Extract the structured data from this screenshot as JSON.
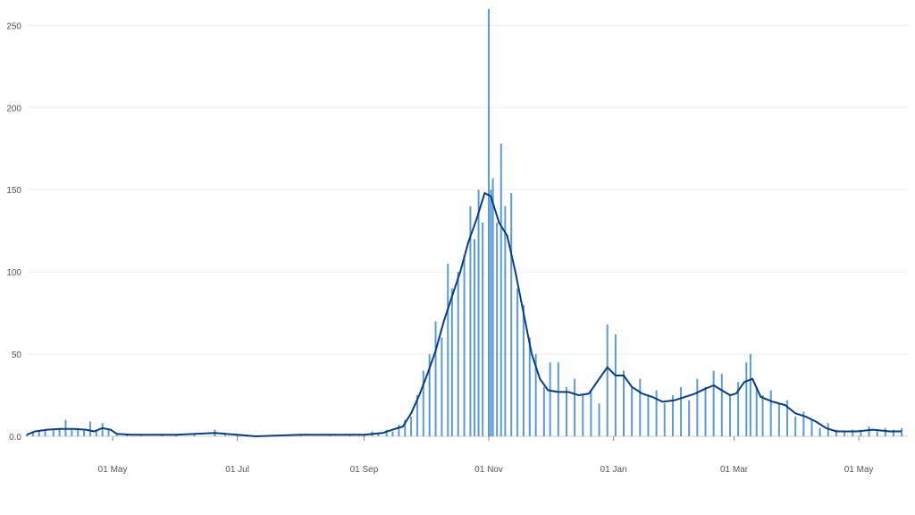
{
  "chart_data": {
    "type": "bar",
    "title": "",
    "xlabel": "",
    "ylabel": "",
    "x_start": "2020-03-20",
    "x_end": "2021-05-25",
    "ylim": [
      0,
      260
    ],
    "grid": "horizontal",
    "colors": {
      "bars": "#5b9bd5",
      "line": "#0b3d7e",
      "grid": "#eeeeee",
      "text": "#555555"
    },
    "y_ticks": [
      {
        "value": 0,
        "label": "0.0"
      },
      {
        "value": 50,
        "label": "50"
      },
      {
        "value": 100,
        "label": "100"
      },
      {
        "value": 150,
        "label": "150"
      },
      {
        "value": 200,
        "label": "200"
      },
      {
        "value": 250,
        "label": "250"
      }
    ],
    "x_ticks": [
      {
        "date": "2020-05-01",
        "label": "01 May"
      },
      {
        "date": "2020-07-01",
        "label": "01 Jul"
      },
      {
        "date": "2020-09-01",
        "label": "01 Sep"
      },
      {
        "date": "2020-11-01",
        "label": "01 Nov"
      },
      {
        "date": "2021-01-01",
        "label": "01 Jan"
      },
      {
        "date": "2021-03-01",
        "label": "01 Mar"
      },
      {
        "date": "2021-05-01",
        "label": "01 May"
      }
    ],
    "series": [
      {
        "kind": "bar",
        "points": [
          [
            "2020-03-20",
            1
          ],
          [
            "2020-03-23",
            2
          ],
          [
            "2020-03-26",
            3
          ],
          [
            "2020-03-29",
            4
          ],
          [
            "2020-04-02",
            4
          ],
          [
            "2020-04-05",
            5
          ],
          [
            "2020-04-08",
            10
          ],
          [
            "2020-04-11",
            4
          ],
          [
            "2020-04-14",
            5
          ],
          [
            "2020-04-17",
            4
          ],
          [
            "2020-04-20",
            9
          ],
          [
            "2020-04-23",
            4
          ],
          [
            "2020-04-26",
            8
          ],
          [
            "2020-04-29",
            4
          ],
          [
            "2020-05-03",
            2
          ],
          [
            "2020-05-08",
            1
          ],
          [
            "2020-05-15",
            1
          ],
          [
            "2020-05-25",
            1
          ],
          [
            "2020-06-01",
            1
          ],
          [
            "2020-06-10",
            1
          ],
          [
            "2020-06-20",
            4
          ],
          [
            "2020-06-25",
            1
          ],
          [
            "2020-07-01",
            1
          ],
          [
            "2020-07-15",
            0
          ],
          [
            "2020-08-01",
            1
          ],
          [
            "2020-08-15",
            1
          ],
          [
            "2020-08-25",
            1
          ],
          [
            "2020-09-01",
            1
          ],
          [
            "2020-09-05",
            3
          ],
          [
            "2020-09-08",
            2
          ],
          [
            "2020-09-12",
            4
          ],
          [
            "2020-09-15",
            3
          ],
          [
            "2020-09-18",
            7
          ],
          [
            "2020-09-21",
            10
          ],
          [
            "2020-09-24",
            12
          ],
          [
            "2020-09-27",
            25
          ],
          [
            "2020-09-30",
            40
          ],
          [
            "2020-10-03",
            50
          ],
          [
            "2020-10-06",
            70
          ],
          [
            "2020-10-09",
            60
          ],
          [
            "2020-10-12",
            105
          ],
          [
            "2020-10-14",
            90
          ],
          [
            "2020-10-17",
            100
          ],
          [
            "2020-10-20",
            110
          ],
          [
            "2020-10-23",
            140
          ],
          [
            "2020-10-25",
            120
          ],
          [
            "2020-10-27",
            150
          ],
          [
            "2020-10-29",
            130
          ],
          [
            "2020-11-01",
            260
          ],
          [
            "2020-11-02",
            150
          ],
          [
            "2020-11-03",
            157
          ],
          [
            "2020-11-05",
            130
          ],
          [
            "2020-11-07",
            178
          ],
          [
            "2020-11-09",
            140
          ],
          [
            "2020-11-12",
            148
          ],
          [
            "2020-11-15",
            90
          ],
          [
            "2020-11-18",
            80
          ],
          [
            "2020-11-21",
            60
          ],
          [
            "2020-11-24",
            50
          ],
          [
            "2020-11-28",
            30
          ],
          [
            "2020-12-01",
            45
          ],
          [
            "2020-12-05",
            45
          ],
          [
            "2020-12-09",
            30
          ],
          [
            "2020-12-13",
            35
          ],
          [
            "2020-12-17",
            25
          ],
          [
            "2020-12-21",
            28
          ],
          [
            "2020-12-25",
            20
          ],
          [
            "2020-12-29",
            68
          ],
          [
            "2021-01-02",
            62
          ],
          [
            "2021-01-06",
            40
          ],
          [
            "2021-01-10",
            30
          ],
          [
            "2021-01-14",
            35
          ],
          [
            "2021-01-18",
            25
          ],
          [
            "2021-01-22",
            28
          ],
          [
            "2021-01-26",
            20
          ],
          [
            "2021-01-30",
            25
          ],
          [
            "2021-02-03",
            30
          ],
          [
            "2021-02-07",
            22
          ],
          [
            "2021-02-11",
            35
          ],
          [
            "2021-02-15",
            30
          ],
          [
            "2021-02-19",
            40
          ],
          [
            "2021-02-23",
            38
          ],
          [
            "2021-02-27",
            25
          ],
          [
            "2021-03-03",
            33
          ],
          [
            "2021-03-07",
            45
          ],
          [
            "2021-03-09",
            50
          ],
          [
            "2021-03-12",
            30
          ],
          [
            "2021-03-15",
            25
          ],
          [
            "2021-03-19",
            28
          ],
          [
            "2021-03-23",
            20
          ],
          [
            "2021-03-27",
            22
          ],
          [
            "2021-03-31",
            12
          ],
          [
            "2021-04-04",
            15
          ],
          [
            "2021-04-08",
            10
          ],
          [
            "2021-04-12",
            5
          ],
          [
            "2021-04-16",
            8
          ],
          [
            "2021-04-20",
            4
          ],
          [
            "2021-04-24",
            3
          ],
          [
            "2021-04-28",
            4
          ],
          [
            "2021-05-02",
            3
          ],
          [
            "2021-05-06",
            6
          ],
          [
            "2021-05-10",
            3
          ],
          [
            "2021-05-14",
            5
          ],
          [
            "2021-05-18",
            4
          ],
          [
            "2021-05-22",
            5
          ]
        ]
      },
      {
        "kind": "line",
        "points": [
          [
            "2020-03-20",
            1
          ],
          [
            "2020-03-24",
            3
          ],
          [
            "2020-03-30",
            4
          ],
          [
            "2020-04-05",
            4.5
          ],
          [
            "2020-04-12",
            4.5
          ],
          [
            "2020-04-18",
            4
          ],
          [
            "2020-04-22",
            3
          ],
          [
            "2020-04-26",
            5
          ],
          [
            "2020-04-30",
            4
          ],
          [
            "2020-05-03",
            1.5
          ],
          [
            "2020-05-10",
            1
          ],
          [
            "2020-06-01",
            1
          ],
          [
            "2020-06-20",
            2
          ],
          [
            "2020-07-01",
            1
          ],
          [
            "2020-07-10",
            0
          ],
          [
            "2020-08-01",
            1
          ],
          [
            "2020-09-01",
            1
          ],
          [
            "2020-09-10",
            2
          ],
          [
            "2020-09-15",
            4
          ],
          [
            "2020-09-20",
            6
          ],
          [
            "2020-09-24",
            14
          ],
          [
            "2020-09-28",
            25
          ],
          [
            "2020-10-02",
            38
          ],
          [
            "2020-10-06",
            52
          ],
          [
            "2020-10-10",
            70
          ],
          [
            "2020-10-14",
            85
          ],
          [
            "2020-10-18",
            100
          ],
          [
            "2020-10-22",
            118
          ],
          [
            "2020-10-26",
            132
          ],
          [
            "2020-10-30",
            148
          ],
          [
            "2020-11-02",
            146
          ],
          [
            "2020-11-06",
            130
          ],
          [
            "2020-11-10",
            122
          ],
          [
            "2020-11-14",
            100
          ],
          [
            "2020-11-18",
            75
          ],
          [
            "2020-11-22",
            50
          ],
          [
            "2020-11-26",
            35
          ],
          [
            "2020-11-30",
            28
          ],
          [
            "2020-12-05",
            27
          ],
          [
            "2020-12-10",
            27
          ],
          [
            "2020-12-15",
            25
          ],
          [
            "2020-12-20",
            26
          ],
          [
            "2020-12-25",
            35
          ],
          [
            "2020-12-29",
            42
          ],
          [
            "2021-01-02",
            37
          ],
          [
            "2021-01-06",
            37
          ],
          [
            "2021-01-10",
            30
          ],
          [
            "2021-01-15",
            26
          ],
          [
            "2021-01-20",
            24
          ],
          [
            "2021-01-25",
            21
          ],
          [
            "2021-01-31",
            22
          ],
          [
            "2021-02-05",
            24
          ],
          [
            "2021-02-10",
            26
          ],
          [
            "2021-02-15",
            29
          ],
          [
            "2021-02-19",
            31
          ],
          [
            "2021-02-23",
            28
          ],
          [
            "2021-02-27",
            25
          ],
          [
            "2021-03-02",
            26
          ],
          [
            "2021-03-06",
            33
          ],
          [
            "2021-03-10",
            35
          ],
          [
            "2021-03-14",
            24
          ],
          [
            "2021-03-20",
            21
          ],
          [
            "2021-03-26",
            19
          ],
          [
            "2021-03-31",
            14
          ],
          [
            "2021-04-05",
            12
          ],
          [
            "2021-04-10",
            9
          ],
          [
            "2021-04-15",
            5
          ],
          [
            "2021-04-20",
            3
          ],
          [
            "2021-04-30",
            3
          ],
          [
            "2021-05-08",
            4
          ],
          [
            "2021-05-16",
            3
          ],
          [
            "2021-05-22",
            3
          ]
        ]
      }
    ]
  }
}
